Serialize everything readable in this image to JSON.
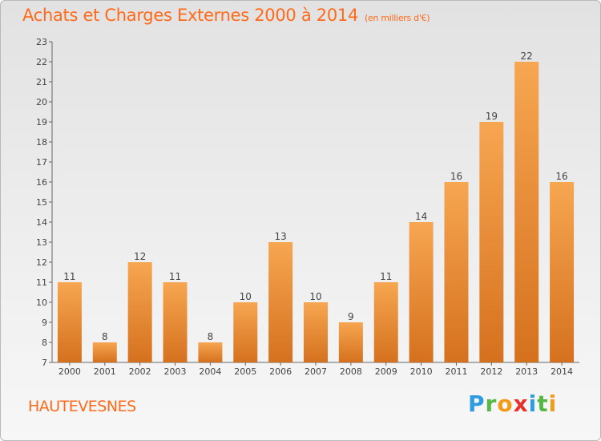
{
  "header": {
    "title": "Achats et Charges Externes 2000 à 2014",
    "unit": "(en milliers d'€)"
  },
  "footer": {
    "commune": "HAUTEVESNES",
    "logo_text": "Proxiti"
  },
  "colors": {
    "accent": "#ff6a1a",
    "bar_light": "#f7a14f",
    "bar_dark": "#d8721f",
    "axis": "#555555"
  },
  "chart_data": {
    "type": "bar",
    "categories": [
      "2000",
      "2001",
      "2002",
      "2003",
      "2004",
      "2005",
      "2006",
      "2007",
      "2008",
      "2009",
      "2010",
      "2011",
      "2012",
      "2013",
      "2014"
    ],
    "values": [
      11,
      8,
      12,
      11,
      8,
      10,
      13,
      10,
      9,
      11,
      14,
      16,
      19,
      22,
      16
    ],
    "title": "Achats et Charges Externes 2000 à 2014",
    "ylim": [
      7,
      23
    ],
    "yticks": [
      7,
      8,
      9,
      10,
      11,
      12,
      13,
      14,
      15,
      16,
      17,
      18,
      19,
      20,
      21,
      22,
      23
    ],
    "grid": false,
    "data_labels": true
  }
}
